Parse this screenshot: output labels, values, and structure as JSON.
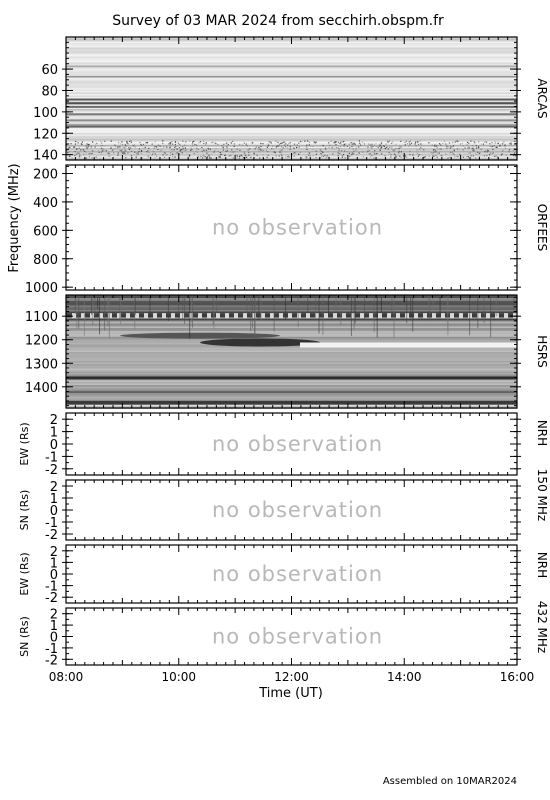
{
  "title": "Survey of 03 MAR 2024 from secchirh.obspm.fr",
  "footer": "Assembled on  10MAR2024",
  "freq_axis_label": "Frequency (MHz)",
  "x_axis": {
    "label": "Time (UT)",
    "ticks": [
      "08:00",
      "10:00",
      "12:00",
      "14:00",
      "16:00"
    ]
  },
  "chart_data": [
    {
      "type": "heatmap",
      "name": "ARCAS",
      "ylabel": "Frequency (MHz)",
      "yticks": [
        "60",
        "80",
        "100",
        "120",
        "140"
      ],
      "ylim": [
        145,
        30
      ],
      "xlim": [
        "08:00",
        "16:00"
      ],
      "note": ""
    },
    {
      "type": "heatmap",
      "name": "ORFEES",
      "yticks": [
        "200",
        "400",
        "600",
        "800",
        "1000"
      ],
      "ylim": [
        1020,
        140
      ],
      "xlim": [
        "08:00",
        "16:00"
      ],
      "note": "no observation"
    },
    {
      "type": "heatmap",
      "name": "HSRS",
      "yticks": [
        "1100",
        "1200",
        "1300",
        "1400"
      ],
      "ylim": [
        1490,
        1010
      ],
      "xlim": [
        "08:00",
        "16:00"
      ],
      "note": ""
    },
    {
      "type": "heatmap",
      "name": "NRH 150 MHz",
      "panels": [
        {
          "ylabel": "EW (Rs)",
          "yticks": [
            "2",
            "1",
            "0",
            "-1",
            "-2"
          ],
          "ylim": [
            -2.5,
            2.5
          ],
          "note": "no observation"
        },
        {
          "ylabel": "SN (Rs)",
          "yticks": [
            "2",
            "1",
            "0",
            "-1",
            "-2"
          ],
          "ylim": [
            -2.5,
            2.5
          ],
          "note": "no observation"
        }
      ],
      "side_label_parts": [
        "NRH",
        "150 MHz"
      ]
    },
    {
      "type": "heatmap",
      "name": "NRH 432 MHz",
      "panels": [
        {
          "ylabel": "EW (Rs)",
          "yticks": [
            "2",
            "1",
            "0",
            "-1",
            "-2"
          ],
          "ylim": [
            -2.5,
            2.5
          ],
          "note": "no observation"
        },
        {
          "ylabel": "SN (Rs)",
          "yticks": [
            "2",
            "1",
            "0",
            "-1",
            "-2"
          ],
          "ylim": [
            -2.5,
            2.5
          ],
          "note": "no observation"
        }
      ],
      "side_label_parts": [
        "NRH",
        "432 MHz"
      ]
    }
  ]
}
